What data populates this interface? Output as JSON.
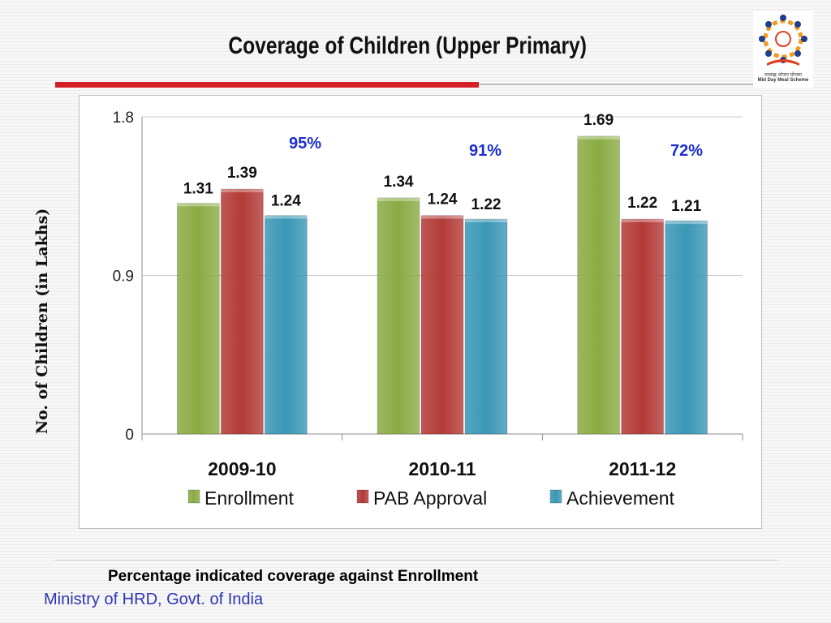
{
  "slide": {
    "title": "Coverage of Children  (Upper Primary)",
    "footnote": "Percentage indicated coverage against  Enrollment",
    "footer": "Ministry of HRD, Govt. of India",
    "logo_caption": "Mid Day Meal Scheme",
    "logo_caption_hindi": "मध्याह्न भोजन योजना"
  },
  "colors": {
    "enrollment": "#8aab44",
    "pab_approval": "#b33a37",
    "achievement": "#3a97b5",
    "title_rule": "#d41f26",
    "percent_text": "#1c2fd1"
  },
  "chart_data": {
    "type": "bar",
    "title": "",
    "xlabel": "",
    "ylabel": "No. of Children (in Lakhs)",
    "ylim": [
      0,
      1.8
    ],
    "yticks": [
      "0",
      "0.9",
      "1.8"
    ],
    "categories": [
      "2009-10",
      "2010-11",
      "2011-12"
    ],
    "series": [
      {
        "name": "Enrollment",
        "values": [
          1.31,
          1.34,
          1.69
        ],
        "labels": [
          "1.31",
          "1.34",
          "1.69"
        ]
      },
      {
        "name": "PAB Approval",
        "values": [
          1.39,
          1.24,
          1.22
        ],
        "labels": [
          "1.39",
          "1.24",
          "1.22"
        ]
      },
      {
        "name": "Achievement",
        "values": [
          1.24,
          1.22,
          1.21
        ],
        "labels": [
          "1.24",
          "1.22",
          "1.21"
        ]
      }
    ],
    "coverage_percent": [
      "95%",
      "91%",
      "72%"
    ],
    "grid": true,
    "legend_position": "bottom"
  }
}
